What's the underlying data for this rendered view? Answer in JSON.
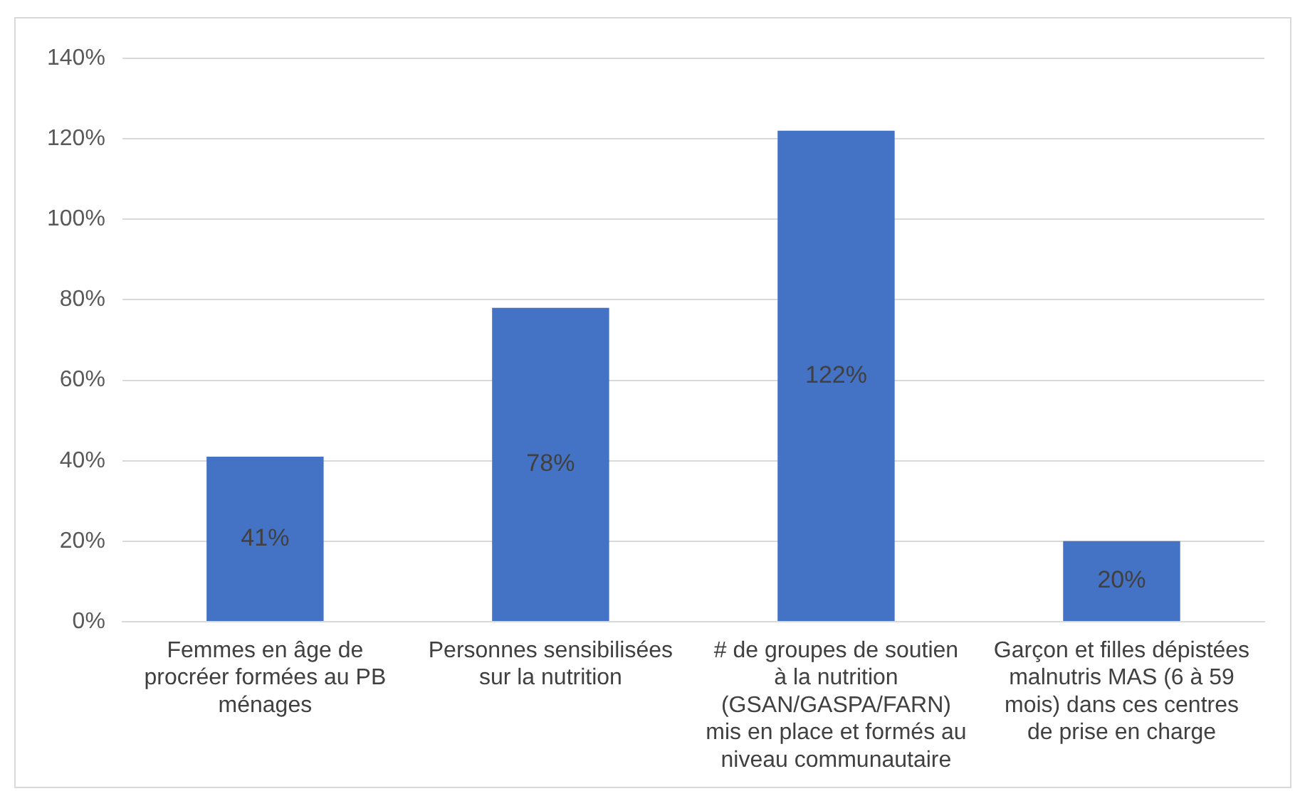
{
  "chart_data": {
    "type": "bar",
    "categories": [
      "Femmes en âge de procréer formées  au PB ménages",
      "Personnes sensibilisées sur la nutrition",
      "#  de groupes de soutien à la nutrition (GSAN/GASPA/FARN) mis en place et formés au niveau communautaire",
      "Garçon et filles dépistées malnutris MAS (6 à 59 mois) dans ces centres de prise en charge"
    ],
    "values": [
      41,
      78,
      122,
      20
    ],
    "value_labels": [
      "41%",
      "78%",
      "122%",
      "20%"
    ],
    "color": "#4472c4",
    "ylim": [
      0,
      140
    ],
    "yticks": [
      {
        "value": 0,
        "label": "0%"
      },
      {
        "value": 20,
        "label": "20%"
      },
      {
        "value": 40,
        "label": "40%"
      },
      {
        "value": 60,
        "label": "60%"
      },
      {
        "value": 80,
        "label": "80%"
      },
      {
        "value": 100,
        "label": "100%"
      },
      {
        "value": 120,
        "label": "120%"
      },
      {
        "value": 140,
        "label": "140%"
      }
    ],
    "grid": "y"
  }
}
